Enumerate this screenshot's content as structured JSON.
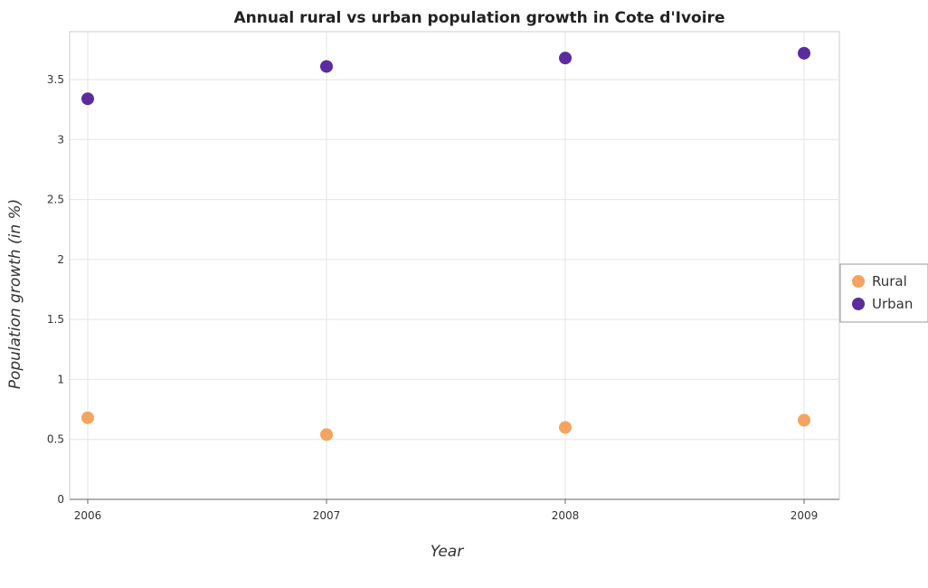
{
  "chart_data": {
    "type": "scatter",
    "title": "Annual rural vs urban population growth in Cote d'Ivoire",
    "xlabel": "Year",
    "ylabel": "Population growth (in %)",
    "categories": [
      "2006",
      "2007",
      "2008",
      "2009"
    ],
    "ylim": [
      0,
      3.9
    ],
    "yticks": [
      0,
      0.5,
      1,
      1.5,
      2,
      2.5,
      3,
      3.5
    ],
    "ytick_labels": [
      "0",
      "0.5",
      "1",
      "1.5",
      "2",
      "2.5",
      "3",
      "3.5"
    ],
    "grid": true,
    "legend_position": "right",
    "series": [
      {
        "name": "Rural",
        "color": "#f4a460",
        "values": [
          0.68,
          0.54,
          0.6,
          0.66
        ]
      },
      {
        "name": "Urban",
        "color": "#5b2c9e",
        "values": [
          3.34,
          3.61,
          3.68,
          3.72
        ]
      }
    ]
  }
}
